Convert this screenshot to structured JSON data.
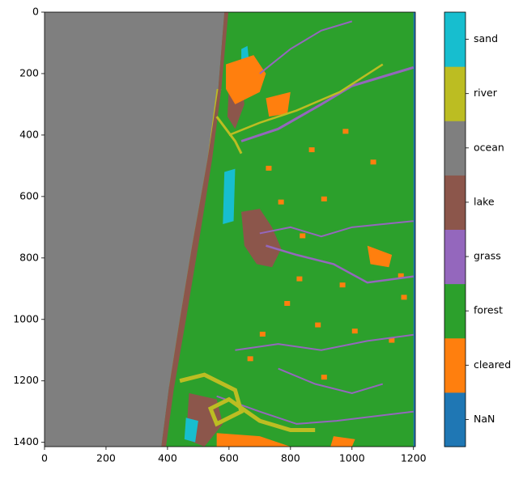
{
  "chart_data": {
    "type": "image",
    "categories": [
      "NaN",
      "cleared",
      "forest",
      "grass",
      "lake",
      "ocean",
      "river",
      "sand"
    ],
    "colors": [
      "#1f77b4",
      "#ff7f0e",
      "#2ca02c",
      "#9467bd",
      "#8c564b",
      "#7f7f7f",
      "#bcbd22",
      "#17becf"
    ],
    "xlim": [
      0,
      1206
    ],
    "ylim": [
      1414,
      0
    ],
    "xticks": [
      0,
      200,
      400,
      600,
      800,
      1000,
      1200
    ],
    "yticks": [
      0,
      200,
      400,
      600,
      800,
      1000,
      1200,
      1400
    ]
  }
}
